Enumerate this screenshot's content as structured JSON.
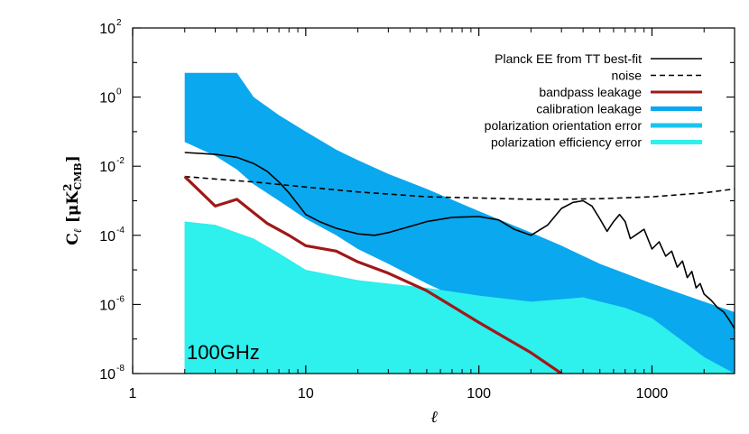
{
  "chart_data": {
    "type": "line",
    "xscale": "log",
    "yscale": "log",
    "xlim": [
      1,
      3000
    ],
    "ylim": [
      1e-08,
      100
    ],
    "xlabel": "ℓ",
    "ylabel": "C_ℓ [μK²_CMB]",
    "ylabel_main": "C",
    "ylabel_sub": "ℓ",
    "ylabel_unit_pre": "[μK",
    "ylabel_unit_sup": "2",
    "ylabel_unit_sub": "CMB",
    "ylabel_unit_post": "]",
    "annotation": "100GHz",
    "legend_position": "top-right",
    "grid": false,
    "x_ticks": [
      {
        "value": 1,
        "label": "1"
      },
      {
        "value": 10,
        "label": "10"
      },
      {
        "value": 100,
        "label": "100"
      },
      {
        "value": 1000,
        "label": "1000"
      }
    ],
    "y_ticks": [
      {
        "value": 1e-08,
        "base": "10",
        "exp": "-8"
      },
      {
        "value": 1e-06,
        "base": "10",
        "exp": "-6"
      },
      {
        "value": 0.0001,
        "base": "10",
        "exp": "-4"
      },
      {
        "value": 0.01,
        "base": "10",
        "exp": "-2"
      },
      {
        "value": 1,
        "base": "10",
        "exp": "0"
      },
      {
        "value": 100,
        "base": "10",
        "exp": "2"
      }
    ],
    "series": [
      {
        "name": "Planck EE from TT best-fit",
        "style": "line",
        "color": "#000000",
        "dash": "solid",
        "x": [
          2,
          3,
          4,
          5,
          6,
          7,
          8,
          9,
          10,
          12,
          15,
          20,
          25,
          30,
          40,
          50,
          70,
          100,
          130,
          160,
          200,
          250,
          300,
          350,
          400,
          450,
          500,
          550,
          600,
          650,
          700,
          750,
          800,
          900,
          1000,
          1100,
          1200,
          1300,
          1400,
          1500,
          1600,
          1700,
          1800,
          1900,
          2000,
          2200,
          2400,
          2600,
          2800,
          3000
        ],
        "y": [
          0.025,
          0.022,
          0.018,
          0.012,
          0.007,
          0.0035,
          0.0017,
          0.0008,
          0.0004,
          0.00025,
          0.00016,
          0.00011,
          0.0001,
          0.00012,
          0.00018,
          0.00025,
          0.00033,
          0.00035,
          0.00028,
          0.00015,
          0.0001,
          0.0002,
          0.0006,
          0.0009,
          0.001,
          0.0007,
          0.0003,
          0.00013,
          0.00025,
          0.0004,
          0.00025,
          8e-05,
          0.0001,
          0.00015,
          4e-05,
          6.5e-05,
          2.5e-05,
          3.5e-05,
          1.2e-05,
          1.8e-05,
          6e-06,
          9e-06,
          3e-06,
          4e-06,
          2e-06,
          1.3e-06,
          8e-07,
          6e-07,
          3.5e-07,
          2e-07
        ]
      },
      {
        "name": "noise",
        "style": "line",
        "color": "#000000",
        "dash": "dashed",
        "x": [
          2,
          5,
          10,
          20,
          50,
          100,
          200,
          300,
          500,
          1000,
          2000,
          3000
        ],
        "y": [
          0.005,
          0.0035,
          0.0025,
          0.0018,
          0.0013,
          0.0012,
          0.0011,
          0.0011,
          0.00115,
          0.0013,
          0.0017,
          0.0022
        ]
      },
      {
        "name": "bandpass leakage",
        "style": "line",
        "color": "#a01818",
        "dash": "solid",
        "x": [
          2,
          3,
          4,
          5,
          6,
          8,
          10,
          15,
          20,
          30,
          50,
          100,
          200,
          300
        ],
        "y": [
          0.005,
          0.0007,
          0.0011,
          0.00045,
          0.00022,
          0.0001,
          5e-05,
          3.5e-05,
          1.7e-05,
          8e-06,
          2.5e-06,
          3e-07,
          4e-08,
          1e-08
        ]
      },
      {
        "name": "calibration leakage",
        "style": "band",
        "color": "#0aa8ee",
        "x": [
          2,
          3,
          4,
          5,
          7,
          10,
          15,
          20,
          30,
          50,
          100,
          200,
          300,
          500,
          1000,
          2000,
          3000
        ],
        "upper": [
          5,
          5,
          5,
          1,
          0.3,
          0.1,
          0.03,
          0.015,
          0.006,
          0.0022,
          0.0005,
          0.00012,
          5e-05,
          1.5e-05,
          4e-06,
          1.2e-06,
          6e-07
        ],
        "lower": [
          0.05,
          0.02,
          0.008,
          0.003,
          0.001,
          0.0003,
          0.0001,
          4e-05,
          1.5e-05,
          4e-06,
          8e-07,
          1.5e-07,
          6e-08,
          2e-08,
          7e-09,
          3e-09,
          2.5e-09
        ]
      },
      {
        "name": "polarization orientation error",
        "style": "band",
        "color": "#18c6ec",
        "x": [
          2,
          3,
          5,
          7,
          10,
          20,
          50,
          100,
          200,
          400,
          700,
          1000,
          2000,
          3000
        ],
        "upper": [
          0.00025,
          0.0002,
          8e-05,
          3e-05,
          1e-05,
          5e-06,
          3e-06,
          1.8e-06,
          1.2e-06,
          1.6e-06,
          8e-07,
          4e-07,
          3e-08,
          1e-08
        ],
        "lower": [
          1e-08,
          1e-08,
          1e-08,
          1e-08,
          1e-08,
          1e-08,
          1e-08,
          1e-08,
          1e-08,
          1e-08,
          1e-08,
          1e-08,
          1e-08,
          1e-08
        ]
      },
      {
        "name": "polarization efficiency error",
        "style": "band",
        "color": "#2ef0ec",
        "x": [
          2,
          3,
          5,
          7,
          10,
          20,
          50,
          100,
          200,
          400,
          700,
          1000,
          2000,
          3000
        ],
        "upper": [
          0.00025,
          0.0002,
          8e-05,
          3e-05,
          1e-05,
          5e-06,
          3e-06,
          1.8e-06,
          1.2e-06,
          1.6e-06,
          8e-07,
          4e-07,
          3e-08,
          1e-08
        ],
        "lower": [
          1e-08,
          1e-08,
          1e-08,
          1e-08,
          1e-08,
          1e-08,
          1e-08,
          1e-08,
          1e-08,
          1e-08,
          1e-08,
          1e-08,
          1e-08,
          1e-08
        ]
      }
    ]
  }
}
